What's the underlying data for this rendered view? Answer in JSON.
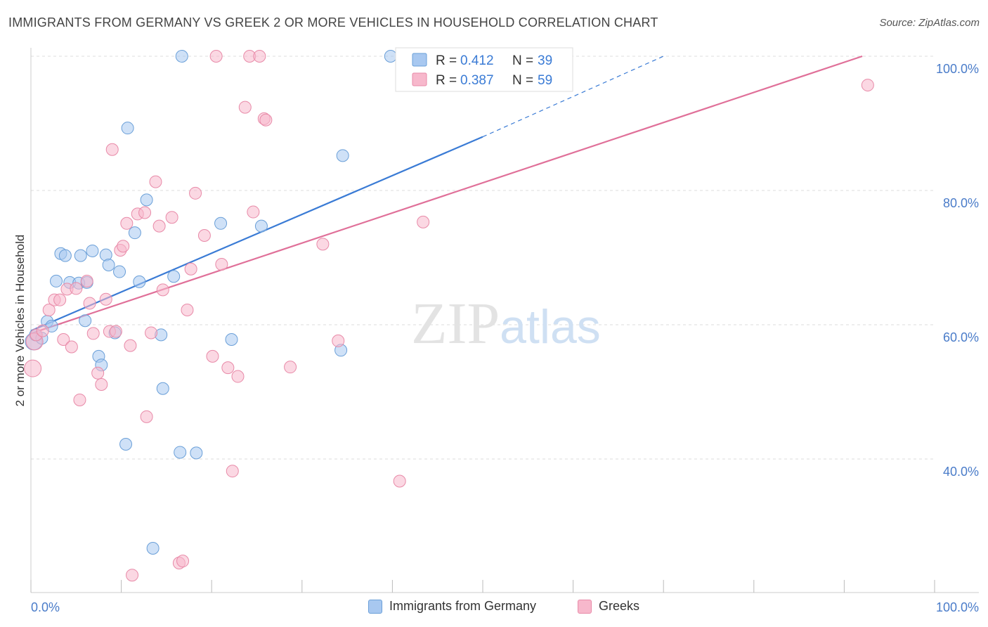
{
  "header": {
    "title": "IMMIGRANTS FROM GERMANY VS GREEK 2 OR MORE VEHICLES IN HOUSEHOLD CORRELATION CHART",
    "source": "Source: ZipAtlas.com"
  },
  "watermark": {
    "zip": "ZIP",
    "atlas": "atlas"
  },
  "colors": {
    "blue_fill": "#a8c8f0",
    "blue_stroke": "#6a9fd8",
    "blue_line": "#3a7bd5",
    "pink_fill": "#f7b8cc",
    "pink_stroke": "#e88aa8",
    "pink_line": "#e07099",
    "tick_text": "#4a7cc9"
  },
  "legend_box": {
    "rows": [
      {
        "r_label": "R = ",
        "r_value": "0.412",
        "n_label": "N = ",
        "n_value": "39"
      },
      {
        "r_label": "R = ",
        "r_value": "0.387",
        "n_label": "N = ",
        "n_value": "59"
      }
    ]
  },
  "chart_data": {
    "type": "scatter",
    "title": "IMMIGRANTS FROM GERMANY VS GREEK 2 OR MORE VEHICLES IN HOUSEHOLD CORRELATION CHART",
    "xlabel": "",
    "ylabel": "2 or more Vehicles in Household",
    "xlim": [
      0,
      100
    ],
    "ylim": [
      20,
      100
    ],
    "x_tick_labels": [
      "0.0%",
      "100.0%"
    ],
    "y_tick_labels": [
      "100.0%",
      "80.0%",
      "60.0%",
      "40.0%"
    ],
    "y_ticks": [
      100,
      80,
      60,
      40
    ],
    "grid": true,
    "legend_position": "bottom",
    "series": [
      {
        "name": "Immigrants from Germany",
        "color": "blue",
        "points": [
          [
            0.3,
            57.5
          ],
          [
            0.5,
            58.5
          ],
          [
            1.2,
            58
          ],
          [
            1.8,
            60.5
          ],
          [
            2.3,
            59.8
          ],
          [
            2.8,
            66.5
          ],
          [
            3.3,
            70.6
          ],
          [
            3.8,
            70.3
          ],
          [
            4.3,
            66.3
          ],
          [
            5.3,
            66.2
          ],
          [
            5.5,
            70.3
          ],
          [
            6.0,
            60.6
          ],
          [
            6.2,
            66.3
          ],
          [
            6.8,
            71.0
          ],
          [
            7.5,
            55.3
          ],
          [
            7.8,
            54.0
          ],
          [
            8.3,
            70.4
          ],
          [
            8.6,
            68.9
          ],
          [
            9.3,
            58.8
          ],
          [
            9.8,
            67.9
          ],
          [
            10.5,
            42.2
          ],
          [
            10.7,
            89.3
          ],
          [
            11.5,
            73.7
          ],
          [
            12.0,
            66.4
          ],
          [
            12.8,
            78.6
          ],
          [
            13.5,
            26.7
          ],
          [
            14.4,
            58.5
          ],
          [
            14.6,
            50.5
          ],
          [
            15.8,
            67.2
          ],
          [
            16.5,
            41.0
          ],
          [
            16.7,
            100
          ],
          [
            18.3,
            40.9
          ],
          [
            21.0,
            75.1
          ],
          [
            22.2,
            57.8
          ],
          [
            25.5,
            74.7
          ],
          [
            34.3,
            56.2
          ],
          [
            34.5,
            85.2
          ],
          [
            39.8,
            100
          ],
          [
            47.5,
            100
          ]
        ]
      },
      {
        "name": "Greeks",
        "color": "pink",
        "points": [
          [
            0.2,
            53.5
          ],
          [
            0.4,
            57.5
          ],
          [
            0.6,
            58.5
          ],
          [
            1.3,
            59.1
          ],
          [
            2.0,
            62.2
          ],
          [
            2.6,
            63.7
          ],
          [
            3.2,
            63.7
          ],
          [
            3.6,
            57.8
          ],
          [
            4.0,
            65.3
          ],
          [
            4.5,
            56.7
          ],
          [
            5.0,
            65.4
          ],
          [
            5.4,
            48.8
          ],
          [
            6.2,
            66.5
          ],
          [
            6.5,
            63.2
          ],
          [
            6.9,
            58.7
          ],
          [
            7.4,
            52.8
          ],
          [
            7.8,
            51.1
          ],
          [
            8.3,
            63.8
          ],
          [
            8.7,
            59.0
          ],
          [
            9.0,
            86.1
          ],
          [
            9.4,
            59.0
          ],
          [
            9.9,
            71.1
          ],
          [
            10.2,
            71.7
          ],
          [
            10.6,
            75.1
          ],
          [
            11.0,
            56.9
          ],
          [
            11.2,
            22.7
          ],
          [
            11.8,
            76.5
          ],
          [
            12.6,
            76.7
          ],
          [
            12.8,
            46.3
          ],
          [
            13.3,
            58.8
          ],
          [
            13.8,
            81.3
          ],
          [
            14.2,
            74.7
          ],
          [
            14.6,
            65.2
          ],
          [
            15.6,
            76.0
          ],
          [
            16.4,
            24.5
          ],
          [
            16.8,
            24.8
          ],
          [
            17.3,
            62.2
          ],
          [
            17.7,
            68.3
          ],
          [
            18.2,
            79.6
          ],
          [
            19.2,
            73.3
          ],
          [
            20.1,
            55.3
          ],
          [
            21.1,
            69.0
          ],
          [
            20.5,
            100
          ],
          [
            21.8,
            53.6
          ],
          [
            22.3,
            38.2
          ],
          [
            22.9,
            52.3
          ],
          [
            23.7,
            92.4
          ],
          [
            24.2,
            100
          ],
          [
            24.6,
            76.8
          ],
          [
            25.3,
            100
          ],
          [
            25.8,
            90.7
          ],
          [
            26.0,
            90.5
          ],
          [
            28.7,
            53.7
          ],
          [
            32.3,
            72.0
          ],
          [
            34.0,
            57.6
          ],
          [
            40.8,
            36.7
          ],
          [
            43.4,
            75.3
          ],
          [
            56.0,
            100
          ],
          [
            92.6,
            95.7
          ]
        ]
      }
    ],
    "trend_lines": [
      {
        "series": "Immigrants from Germany",
        "solid": [
          [
            0,
            59.1
          ],
          [
            50,
            88.0
          ]
        ],
        "dashed": [
          [
            50,
            88.0
          ],
          [
            70,
            100
          ]
        ]
      },
      {
        "series": "Greeks",
        "solid": [
          [
            0,
            58.7
          ],
          [
            92,
            100
          ]
        ]
      }
    ]
  }
}
